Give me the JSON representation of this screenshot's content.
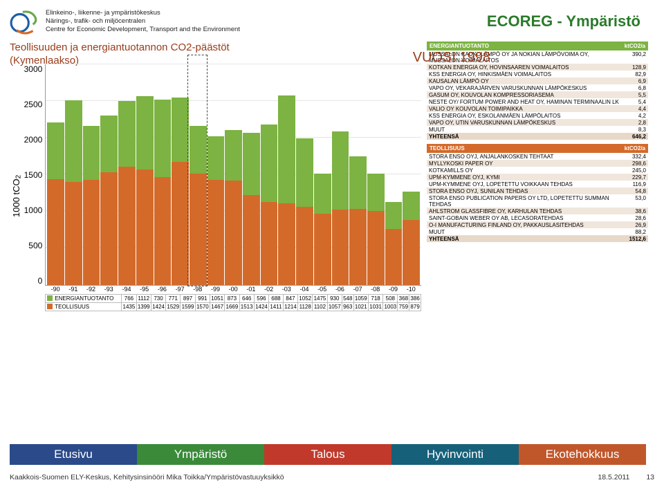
{
  "header": {
    "org_fi": "Elinkeino-, liikenne- ja ympäristökeskus",
    "org_sv": "Närings-, trafik- och miljöcentralen",
    "org_en": "Centre for Economic Development, Transport and the Environment",
    "ecoreg_title": "ECOREG - Ympäristö"
  },
  "chart": {
    "title_line1": "Teollisuuden ja energiantuotannon CO2-päästöt",
    "title_line2": "(Kymenlaakso)",
    "year_label": "VUOSI 1998",
    "y_axis_label": "1000 tCO",
    "y_axis_sub": "2",
    "ylim": [
      0,
      3000
    ],
    "ytick_step": 500,
    "yticks": [
      "3000",
      "2500",
      "2000",
      "1500",
      "1000",
      "500",
      "0"
    ],
    "highlight_year_index": 8,
    "colors": {
      "energia": "#7cb342",
      "teollisuus": "#d46a2a",
      "grid": "#e5e5e5",
      "axis": "#999999"
    },
    "years": [
      "-90",
      "-91",
      "-92",
      "-93",
      "-94",
      "-95",
      "-96",
      "-97",
      "-98",
      "-99",
      "-00",
      "-01",
      "-02",
      "-03",
      "-04",
      "-05",
      "-06",
      "-07",
      "-08",
      "-09",
      "-10"
    ],
    "series": [
      {
        "name": "ENERGIANTUOTANTO",
        "label": "ENERGIANTUOTANTO",
        "color": "#7cb342",
        "values": [
          766,
          1112,
          730,
          771,
          897,
          991,
          1051,
          873,
          646,
          596,
          688,
          847,
          1052,
          1475,
          930,
          548,
          1059,
          718,
          508,
          368,
          386
        ]
      },
      {
        "name": "TEOLLISUUS",
        "label": "TEOLLISUUS",
        "color": "#d46a2a",
        "values": [
          1435,
          1399,
          1424,
          1529,
          1599,
          1570,
          1467,
          1669,
          1513,
          1424,
          1411,
          1214,
          1128,
          1102,
          1057,
          963,
          1021,
          1031,
          1003,
          759,
          879
        ]
      }
    ]
  },
  "energia_table": {
    "header": "ENERGIANTUOTANTO",
    "unit": "ktCO2/a",
    "rows": [
      [
        "MUSSALON KAUKOLÄMPÖ OY JA NOKIAN LÄMPÖVOIMA OY, MUSSALON VOIMALAITOS",
        "390,2"
      ],
      [
        "KOTKAN ENERGIA OY, HOVINSAAREN VOIMALAITOS",
        "128,9"
      ],
      [
        "KSS ENERGIA OY, HINKISMÄEN VOIMALAITOS",
        "82,9"
      ],
      [
        "KAUSALAN LÄMPÖ OY",
        "6,9"
      ],
      [
        "VAPO OY, VEKARAJÄRVEN VARUSKUNNAN LÄMPÖKESKUS",
        "6,8"
      ],
      [
        "GASUM OY, KOUVOLAN KOMPRESSORIASEMA",
        "5,5"
      ],
      [
        "NESTE OY/ FORTUM POWER AND HEAT OY, HAMINAN TERMINAALIN LK",
        "5,4"
      ],
      [
        "VALIO OY KOUVOLAN TOIMIPAIKKA",
        "4,4"
      ],
      [
        "KSS ENERGIA OY, ESKOLANMÄEN LÄMPÖLAITOS",
        "4,2"
      ],
      [
        "VAPO OY, UTIN VARUSKUNNAN LÄMPÖKESKUS",
        "2,8"
      ],
      [
        "MUUT",
        "8,3"
      ]
    ],
    "total_label": "YHTEENSÄ",
    "total_value": "646,2"
  },
  "teollisuus_table": {
    "header": "TEOLLISUUS",
    "unit": "ktCO2/a",
    "rows": [
      [
        "STORA ENSO OYJ, ANJALANKOSKEN TEHTAAT",
        "332,4"
      ],
      [
        "MYLLYKOSKI PAPER OY",
        "298,6"
      ],
      [
        "KOTKAMILLS OY",
        "245,0"
      ],
      [
        "UPM-KYMMENE OYJ, KYMI",
        "229,7"
      ],
      [
        "UPM-KYMMENE OYJ, LOPETETTU VOIKKAAN TEHDAS",
        "116,9"
      ],
      [
        "STORA ENSO OYJ, SUNILAN TEHDAS",
        "54,8"
      ],
      [
        "STORA ENSO PUBLICATION PAPERS OY LTD, LOPETETTU SUMMAN TEHDAS",
        "53,0"
      ],
      [
        "AHLSTROM GLASSFIBRE OY, KARHULAN TEHDAS",
        "38,6"
      ],
      [
        "SAINT-GOBAIN WEBER OY AB, LECASORATEHDAS",
        "28,6"
      ],
      [
        "O-I MANUFACTURING FINLAND OY, PAKKAUSLASITEHDAS",
        "26,9"
      ],
      [
        "MUUT",
        "88,2"
      ]
    ],
    "total_label": "YHTEENSÄ",
    "total_value": "1512,6"
  },
  "tabs": {
    "etusivu": "Etusivu",
    "ymparisto": "Ympäristö",
    "talous": "Talous",
    "hyvinvointi": "Hyvinvointi",
    "ekotehokkuus": "Ekotehokkuus"
  },
  "footer": {
    "credit": "Kaakkois-Suomen ELY-Keskus, Kehitysinsinööri Mika Toikka/Ympäristövastuuyksikkö",
    "date": "18.5.2011",
    "page_num": "13"
  }
}
